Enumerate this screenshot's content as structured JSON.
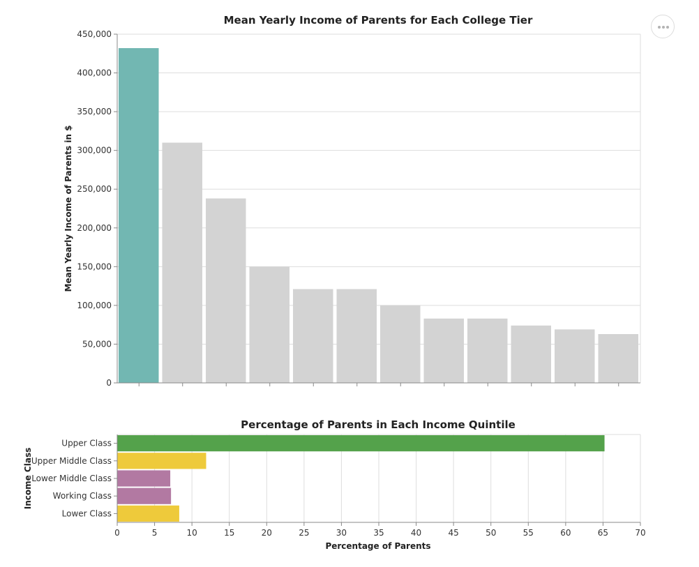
{
  "menu": {
    "icon": "more-horizontal-icon"
  },
  "chart_data": [
    {
      "type": "bar",
      "title": "Mean Yearly Income of Parents for Each College Tier",
      "xlabel": "",
      "ylabel": "Mean Yearly Income of Parents in $",
      "ylim": [
        0,
        450000
      ],
      "yticks": [
        0,
        50000,
        100000,
        150000,
        200000,
        250000,
        300000,
        350000,
        400000,
        450000
      ],
      "ytick_labels": [
        "0",
        "50,000",
        "100,000",
        "150,000",
        "200,000",
        "250,000",
        "300,000",
        "350,000",
        "400,000",
        "450,000"
      ],
      "values": [
        432000,
        310000,
        238000,
        150000,
        121000,
        121000,
        100000,
        83000,
        83000,
        74000,
        69000,
        63000
      ],
      "highlight_index": 0,
      "colors": {
        "highlight": "#72b7b2",
        "default": "#d3d3d3"
      },
      "grid": true
    },
    {
      "type": "bar",
      "orientation": "horizontal",
      "title": "Percentage of Parents in Each Income Quintile",
      "xlabel": "Percentage of Parents",
      "ylabel": "Income Class",
      "xlim": [
        0,
        70
      ],
      "xticks": [
        0,
        5,
        10,
        15,
        20,
        25,
        30,
        35,
        40,
        45,
        50,
        55,
        60,
        65,
        70
      ],
      "categories": [
        "Upper Class",
        "Upper Middle Class",
        "Lower Middle Class",
        "Working Class",
        "Lower Class"
      ],
      "values": [
        65.2,
        11.9,
        7.1,
        7.2,
        8.3
      ],
      "colors": [
        "#54a24b",
        "#eeca3b",
        "#b279a2",
        "#b279a2",
        "#eeca3b"
      ],
      "grid": true
    }
  ]
}
